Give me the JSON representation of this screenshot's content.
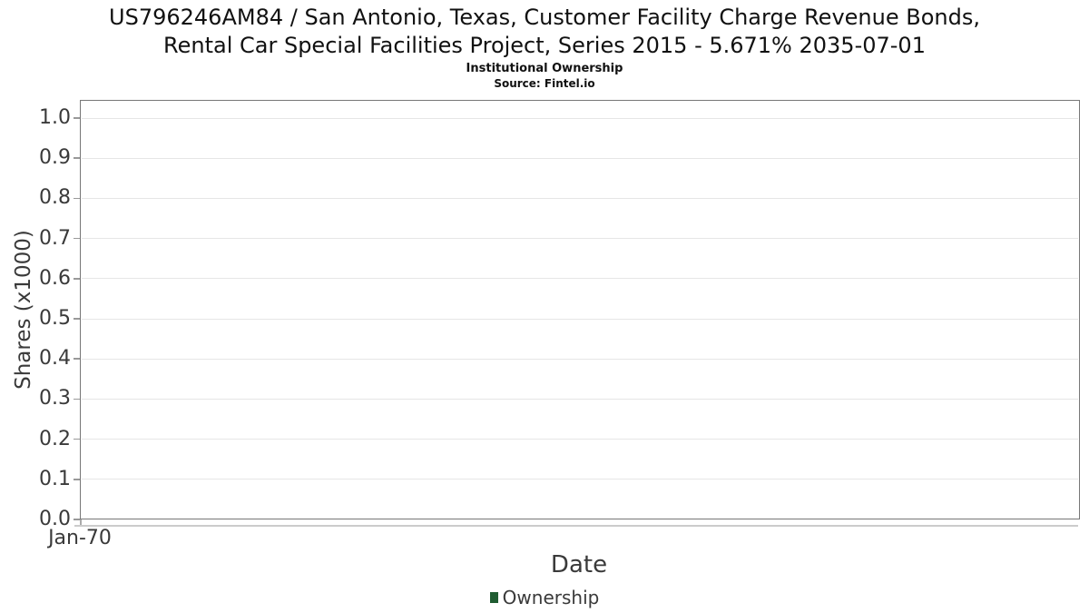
{
  "title": {
    "line1": "US796246AM84 / San Antonio, Texas, Customer Facility Charge Revenue Bonds,",
    "line2": "Rental Car Special Facilities Project, Series 2015 - 5.671% 2035-07-01"
  },
  "subtitle": "Institutional Ownership",
  "source": "Source: Fintel.io",
  "chart_data": {
    "type": "line",
    "title": "US796246AM84 / San Antonio, Texas, Customer Facility Charge Revenue Bonds, Rental Car Special Facilities Project, Series 2015 - 5.671% 2035-07-01",
    "subtitle": "Institutional Ownership",
    "source": "Source: Fintel.io",
    "xlabel": "Date",
    "ylabel": "Shares (x1000)",
    "ylim": [
      0.0,
      1.0
    ],
    "yticks": [
      "0.0",
      "0.1",
      "0.2",
      "0.3",
      "0.4",
      "0.5",
      "0.6",
      "0.7",
      "0.8",
      "0.9",
      "1.0"
    ],
    "xticks": [
      "Jan-70"
    ],
    "grid": true,
    "legend": {
      "position": "bottom-center",
      "entries": [
        {
          "label": "Ownership",
          "color": "#1f5c31"
        }
      ]
    },
    "series": [
      {
        "name": "Ownership",
        "x": [],
        "values": []
      }
    ]
  },
  "colors": {
    "background": "#ffffff",
    "plot_border": "#777777",
    "gridline": "#e6e6e6",
    "tick_mark": "#999999",
    "axis_line": "#cccccc",
    "tick_text": "#3a3a3a",
    "title_text": "#111111",
    "legend_marker": "#1f5c31"
  }
}
